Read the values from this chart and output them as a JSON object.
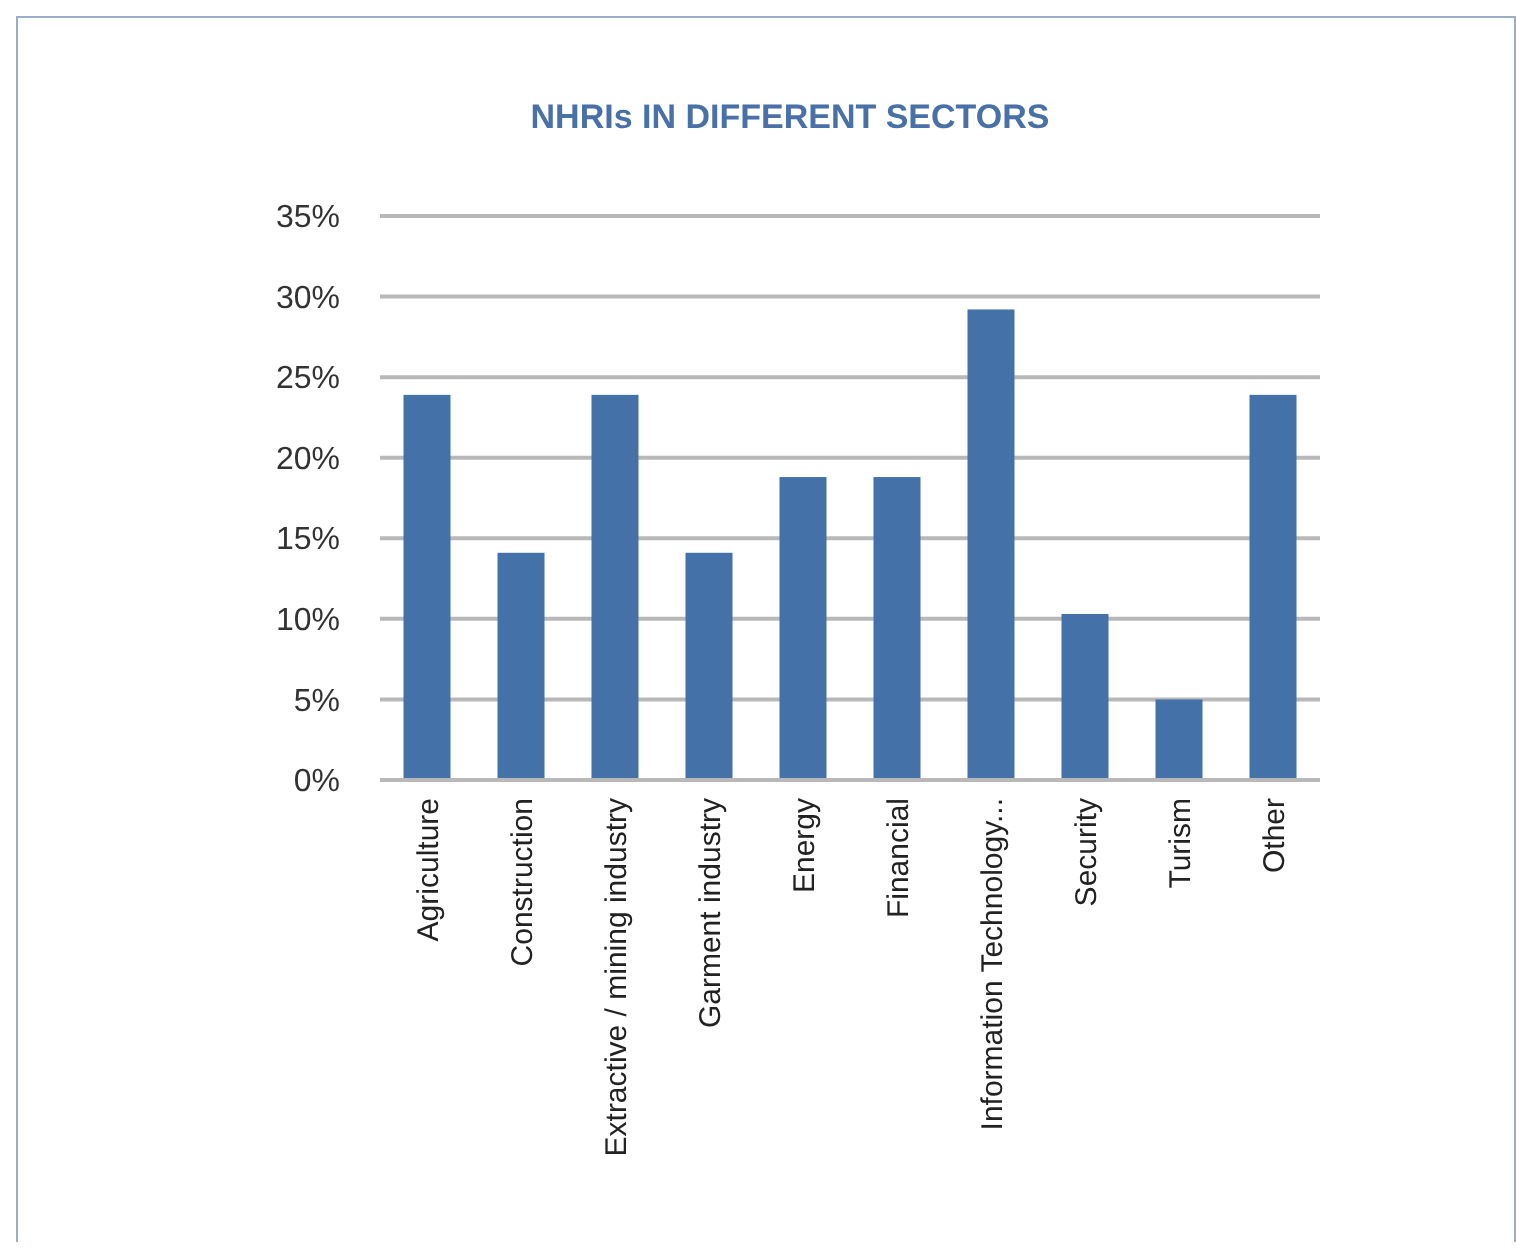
{
  "chart_data": {
    "type": "bar",
    "title": "NHRIs IN DIFFERENT SECTORS",
    "categories": [
      "Agriculture",
      "Construction",
      "Extractive / mining industry",
      "Garment industry",
      "Energy",
      "Financial",
      "Information Technology...",
      "Security",
      "Turism",
      "Other"
    ],
    "values": [
      23.9,
      14.1,
      23.9,
      14.1,
      18.8,
      18.8,
      29.2,
      10.3,
      5.0,
      23.9
    ],
    "color": "#4472a8",
    "ylim": [
      0,
      35
    ],
    "yticks": [
      {
        "value": 0,
        "label": "0%"
      },
      {
        "value": 5,
        "label": "5%"
      },
      {
        "value": 10,
        "label": "10%"
      },
      {
        "value": 15,
        "label": "15%"
      },
      {
        "value": 20,
        "label": "20%"
      },
      {
        "value": 25,
        "label": "25%"
      },
      {
        "value": 30,
        "label": "30%"
      },
      {
        "value": 35,
        "label": "35%"
      }
    ],
    "grid": "y"
  }
}
